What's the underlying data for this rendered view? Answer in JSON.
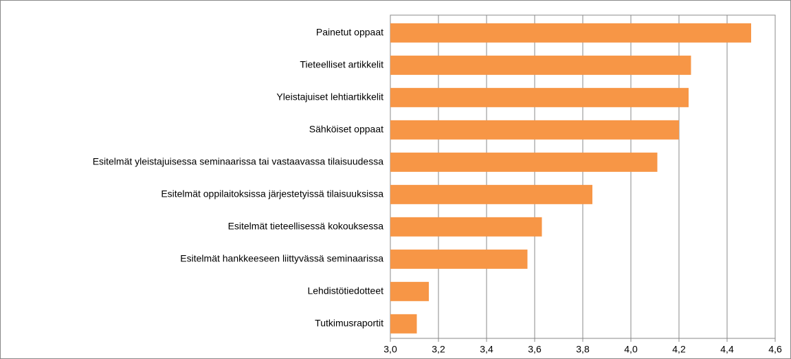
{
  "chart_data": {
    "type": "barh",
    "categories": [
      "Painetut oppaat",
      "Tieteelliset artikkelit",
      "Yleistajuiset lehtiartikkelit",
      "Sähköiset oppaat",
      "Esitelmät yleistajuisessa seminaarissa tai vastaavassa tilaisuudessa",
      "Esitelmät oppilaitoksissa järjestetyissä tilaisuuksissa",
      "Esitelmät tieteellisessä kokouksessa",
      "Esitelmät hankkeeseen liittyvässä seminaarissa",
      "Lehdistötiedotteet",
      "Tutkimusraportit"
    ],
    "values": [
      4.5,
      4.25,
      4.24,
      4.2,
      4.11,
      3.84,
      3.63,
      3.57,
      3.16,
      3.11
    ],
    "color": "#f79646",
    "xlim": [
      3.0,
      4.6
    ],
    "xticks": [
      {
        "value": 3.0,
        "label": "3,0"
      },
      {
        "value": 3.2,
        "label": "3,2"
      },
      {
        "value": 3.4,
        "label": "3,4"
      },
      {
        "value": 3.6,
        "label": "3,6"
      },
      {
        "value": 3.8,
        "label": "3,8"
      },
      {
        "value": 4.0,
        "label": "4,0"
      },
      {
        "value": 4.2,
        "label": "4,2"
      },
      {
        "value": 4.4,
        "label": "4,4"
      },
      {
        "value": 4.6,
        "label": "4,6"
      }
    ],
    "grid": true
  }
}
